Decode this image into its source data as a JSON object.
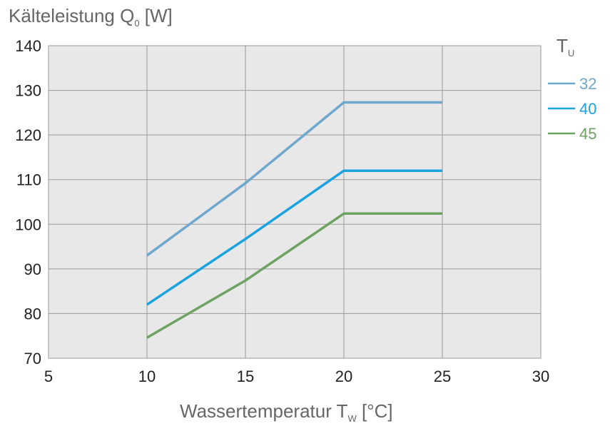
{
  "chart_data": {
    "type": "line",
    "title": "",
    "ylabel": {
      "main": "Kälteleistung Q",
      "sub": "0",
      "unit": " [W]"
    },
    "xlabel": {
      "main": "Wassertemperatur T",
      "sub": "W",
      "unit": " [°C]"
    },
    "xlim": [
      5,
      30
    ],
    "ylim": [
      70,
      140
    ],
    "xticks": [
      5,
      10,
      15,
      20,
      25,
      30
    ],
    "yticks": [
      70,
      80,
      90,
      100,
      110,
      120,
      130,
      140
    ],
    "grid": true,
    "legend": {
      "title_main": "T",
      "title_sub": "U",
      "placement": "right"
    },
    "series": [
      {
        "name": "32",
        "color": "#6fa8cc",
        "x": [
          10,
          15,
          20,
          25
        ],
        "y": [
          93,
          109.2,
          127.3,
          127.3
        ]
      },
      {
        "name": "40",
        "color": "#1aa3de",
        "x": [
          10,
          15,
          20,
          25
        ],
        "y": [
          82,
          96.7,
          112,
          112
        ]
      },
      {
        "name": "45",
        "color": "#6ea262",
        "x": [
          10,
          15,
          20,
          25
        ],
        "y": [
          74.6,
          87.4,
          102.4,
          102.4
        ]
      }
    ]
  }
}
